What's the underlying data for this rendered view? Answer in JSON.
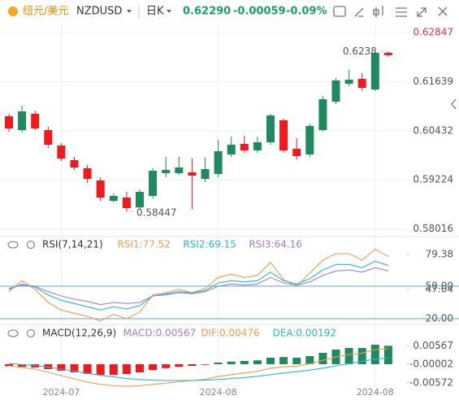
{
  "header": {
    "pair_name": "纽元/美元",
    "symbol": "NZDUSD",
    "period": "日K",
    "price": "0.62290",
    "change": "-0.00059",
    "change_pct": "-0.09%"
  },
  "chart_data": [
    {
      "type": "candlestick",
      "categories": [
        null,
        null,
        null,
        null,
        "2024-07",
        null,
        null,
        null,
        null,
        null,
        null,
        null,
        null,
        null,
        null,
        null,
        "2024-08",
        null,
        null,
        null,
        null,
        null,
        null,
        null,
        null,
        null,
        null,
        null,
        "2024-08",
        null
      ],
      "open": [
        0.60787,
        0.60447,
        0.60847,
        0.60447,
        0.60067,
        0.59707,
        0.59507,
        0.59207,
        0.58707,
        0.58787,
        0.58547,
        0.58827,
        0.59387,
        0.59387,
        0.59407,
        0.59247,
        0.59367,
        0.59847,
        0.60107,
        0.59947,
        0.60147,
        0.60687,
        0.59987,
        0.59847,
        0.60447,
        0.61147,
        0.61587,
        0.61707,
        0.61447,
        0.62349
      ],
      "high": [
        0.60847,
        0.61047,
        0.60927,
        0.60527,
        0.60127,
        0.59787,
        0.59587,
        0.59287,
        0.58887,
        0.58927,
        0.58987,
        0.59507,
        0.59787,
        0.59787,
        0.59747,
        0.59767,
        0.60207,
        0.60287,
        0.60307,
        0.60287,
        0.60847,
        0.60727,
        0.60247,
        0.60607,
        0.61287,
        0.61727,
        0.61927,
        0.61847,
        0.62364,
        0.6238
      ],
      "low": [
        0.60407,
        0.60387,
        0.60447,
        0.60007,
        0.59687,
        0.59467,
        0.59147,
        0.58707,
        0.58667,
        0.58447,
        0.58487,
        0.58767,
        0.59287,
        0.59347,
        0.58499,
        0.59167,
        0.59287,
        0.59787,
        0.59887,
        0.59887,
        0.60087,
        0.59887,
        0.59727,
        0.59787,
        0.60407,
        0.61087,
        0.61527,
        0.61407,
        0.61407,
        0.6225
      ],
      "close": [
        0.60487,
        0.60907,
        0.60487,
        0.60087,
        0.59747,
        0.59527,
        0.59247,
        0.58787,
        0.58827,
        0.58527,
        0.58927,
        0.59447,
        0.59467,
        0.59527,
        0.59327,
        0.59487,
        0.59927,
        0.60087,
        0.59947,
        0.60147,
        0.60807,
        0.59947,
        0.59807,
        0.60547,
        0.61207,
        0.61667,
        0.61687,
        0.61487,
        0.62349,
        0.6229
      ],
      "up_color": "#1f8a60",
      "down_color": "#f0191e",
      "ylim": [
        0.57847,
        0.63047
      ],
      "yticks": [
        0.62847,
        0.61639,
        0.60432,
        0.59224,
        0.58016
      ],
      "grid": true
    },
    {
      "type": "line",
      "title": "RSI(7,14,21)",
      "series": [
        {
          "name": "RSI1:77.52",
          "color": "#f59a4a",
          "values": [
            45,
            55,
            47,
            35,
            28,
            25,
            22,
            18,
            24,
            20,
            26,
            42,
            44,
            47,
            44,
            48,
            58,
            61,
            58,
            60,
            72,
            56,
            50,
            62,
            74,
            80,
            80,
            74,
            84,
            77.52
          ]
        },
        {
          "name": "RSI2:69.15",
          "color": "#29b6d6",
          "values": [
            47,
            52,
            49,
            42,
            37,
            34,
            31,
            28,
            31,
            29,
            32,
            41,
            43,
            45,
            44,
            46,
            53,
            55,
            54,
            55,
            63,
            55,
            52,
            57,
            65,
            70,
            70,
            67,
            73,
            69.15
          ]
        },
        {
          "name": "RSI3:64.16",
          "color": "#9a7fd6",
          "values": [
            48,
            51,
            50,
            45,
            41,
            38,
            36,
            33,
            35,
            34,
            35,
            41,
            42,
            44,
            43,
            45,
            50,
            52,
            51,
            52,
            58,
            53,
            51,
            54,
            60,
            64,
            65,
            63,
            67,
            64.16
          ]
        }
      ],
      "ylim": [
        17.75,
        89
      ],
      "yticks": [
        79.38,
        {
          "value": 50,
          "label": "50.00"
        },
        47.04,
        {
          "value": 20,
          "label": "20.00"
        }
      ],
      "level_lines": [
        50,
        20
      ],
      "level_color": "#5aa7e6"
    },
    {
      "type": "macd",
      "title": "MACD(12,26,9)",
      "histogram": {
        "name": "MACD:0.00567",
        "color": "#9a7fd6",
        "up_color": "#1f8a60",
        "down_color": "#f0191e",
        "values": [
          -0.0006,
          -0.0008,
          -0.001,
          -0.0015,
          -0.002,
          -0.0025,
          -0.003,
          -0.0033,
          -0.0033,
          -0.003,
          -0.0025,
          -0.0018,
          -0.0012,
          -0.0008,
          -0.0005,
          -0.0002,
          0.0005,
          0.0008,
          0.001,
          0.0012,
          0.002,
          0.0022,
          0.002,
          0.0025,
          0.0035,
          0.0045,
          0.005,
          0.005,
          0.006,
          0.00567
        ]
      },
      "series": [
        {
          "name": "DIF:0.00476",
          "color": "#f59a4a",
          "values": [
            -0.0005,
            -0.001,
            -0.0015,
            -0.0025,
            -0.0035,
            -0.0045,
            -0.0055,
            -0.0062,
            -0.0066,
            -0.0068,
            -0.0066,
            -0.0062,
            -0.0058,
            -0.0054,
            -0.005,
            -0.0046,
            -0.0038,
            -0.0032,
            -0.0027,
            -0.0022,
            -0.0012,
            -0.0008,
            -0.0006,
            0.0001,
            0.0012,
            0.0022,
            0.003,
            0.0034,
            0.0045,
            0.00476
          ]
        },
        {
          "name": "DEA:0.00192",
          "color": "#29b6d6",
          "values": [
            0.0002,
            -0.0001,
            -0.0004,
            -0.0009,
            -0.0015,
            -0.0021,
            -0.0028,
            -0.0034,
            -0.0039,
            -0.0044,
            -0.0047,
            -0.0049,
            -0.005,
            -0.005,
            -0.005,
            -0.0049,
            -0.0047,
            -0.0044,
            -0.0041,
            -0.0037,
            -0.0032,
            -0.0027,
            -0.0023,
            -0.0018,
            -0.0012,
            -0.0005,
            0.0002,
            0.0009,
            0.0016,
            0.00192
          ]
        }
      ],
      "ylim": [
        -0.0075,
        0.0075
      ],
      "yticks": [
        0.00567,
        -2e-05,
        -0.00572
      ]
    }
  ]
}
